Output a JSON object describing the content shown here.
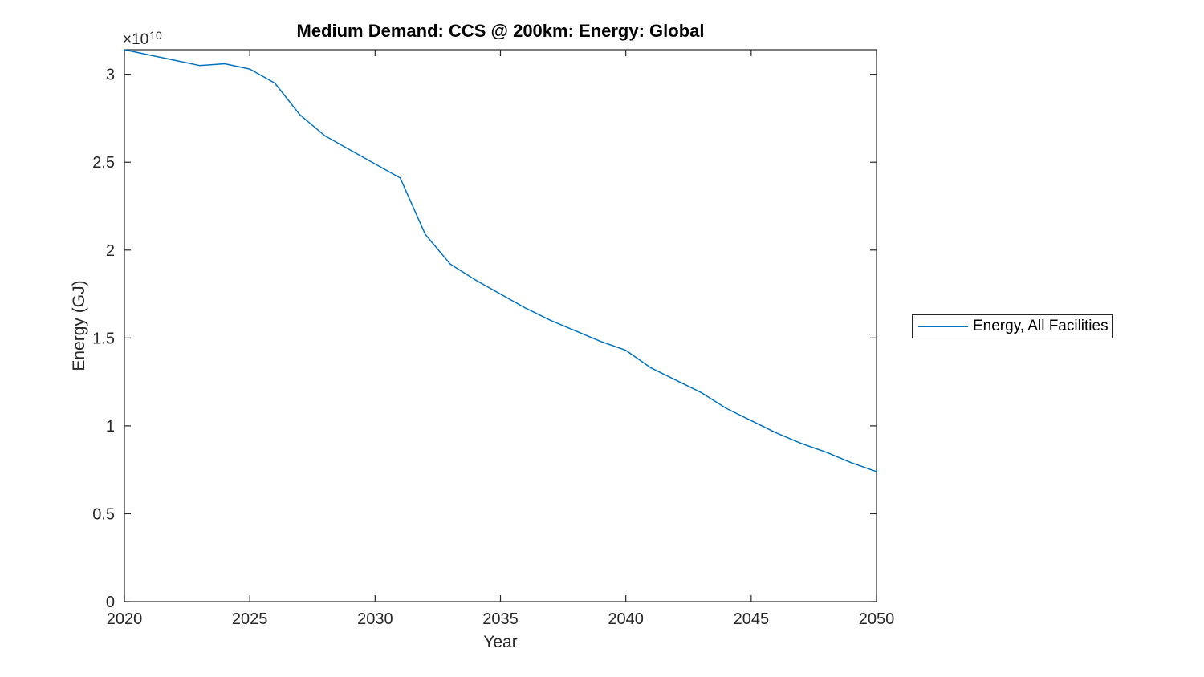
{
  "colors": {
    "background": "#ffffff",
    "axis": "#262626",
    "tick_text": "#262626",
    "title_text": "#000000",
    "series_blue": "#0072BD"
  },
  "chart_data": {
    "type": "line",
    "title": "Medium Demand: CCS @ 200km: Energy: Global",
    "xlabel": "Year",
    "ylabel": "Energy (GJ)",
    "y_axis_multiplier": {
      "base": "×10",
      "exponent": "10"
    },
    "value_scale": 10000000000.0,
    "xlim": [
      2020,
      2050
    ],
    "ylim_e10": [
      0,
      3.14
    ],
    "x_ticks": [
      2020,
      2025,
      2030,
      2035,
      2040,
      2045,
      2050
    ],
    "y_ticks_e10": [
      0,
      0.5,
      1,
      1.5,
      2,
      2.5,
      3
    ],
    "grid": false,
    "legend_position": "right-outside",
    "x": [
      2020,
      2021,
      2022,
      2023,
      2024,
      2025,
      2026,
      2027,
      2028,
      2029,
      2030,
      2031,
      2032,
      2033,
      2034,
      2035,
      2036,
      2037,
      2038,
      2039,
      2040,
      2041,
      2042,
      2043,
      2044,
      2045,
      2046,
      2047,
      2048,
      2049,
      2050
    ],
    "series": [
      {
        "name": "Energy, All Facilities",
        "color": "#0072BD",
        "values_e10": [
          3.14,
          3.11,
          3.08,
          3.05,
          3.06,
          3.03,
          2.95,
          2.77,
          2.65,
          2.57,
          2.49,
          2.41,
          2.09,
          1.92,
          1.83,
          1.75,
          1.67,
          1.6,
          1.54,
          1.48,
          1.43,
          1.33,
          1.26,
          1.19,
          1.1,
          1.03,
          0.96,
          0.9,
          0.85,
          0.79,
          0.74
        ]
      }
    ]
  },
  "legend": {
    "entries": [
      {
        "label": "Energy, All Facilities",
        "color": "#0072BD"
      }
    ]
  }
}
